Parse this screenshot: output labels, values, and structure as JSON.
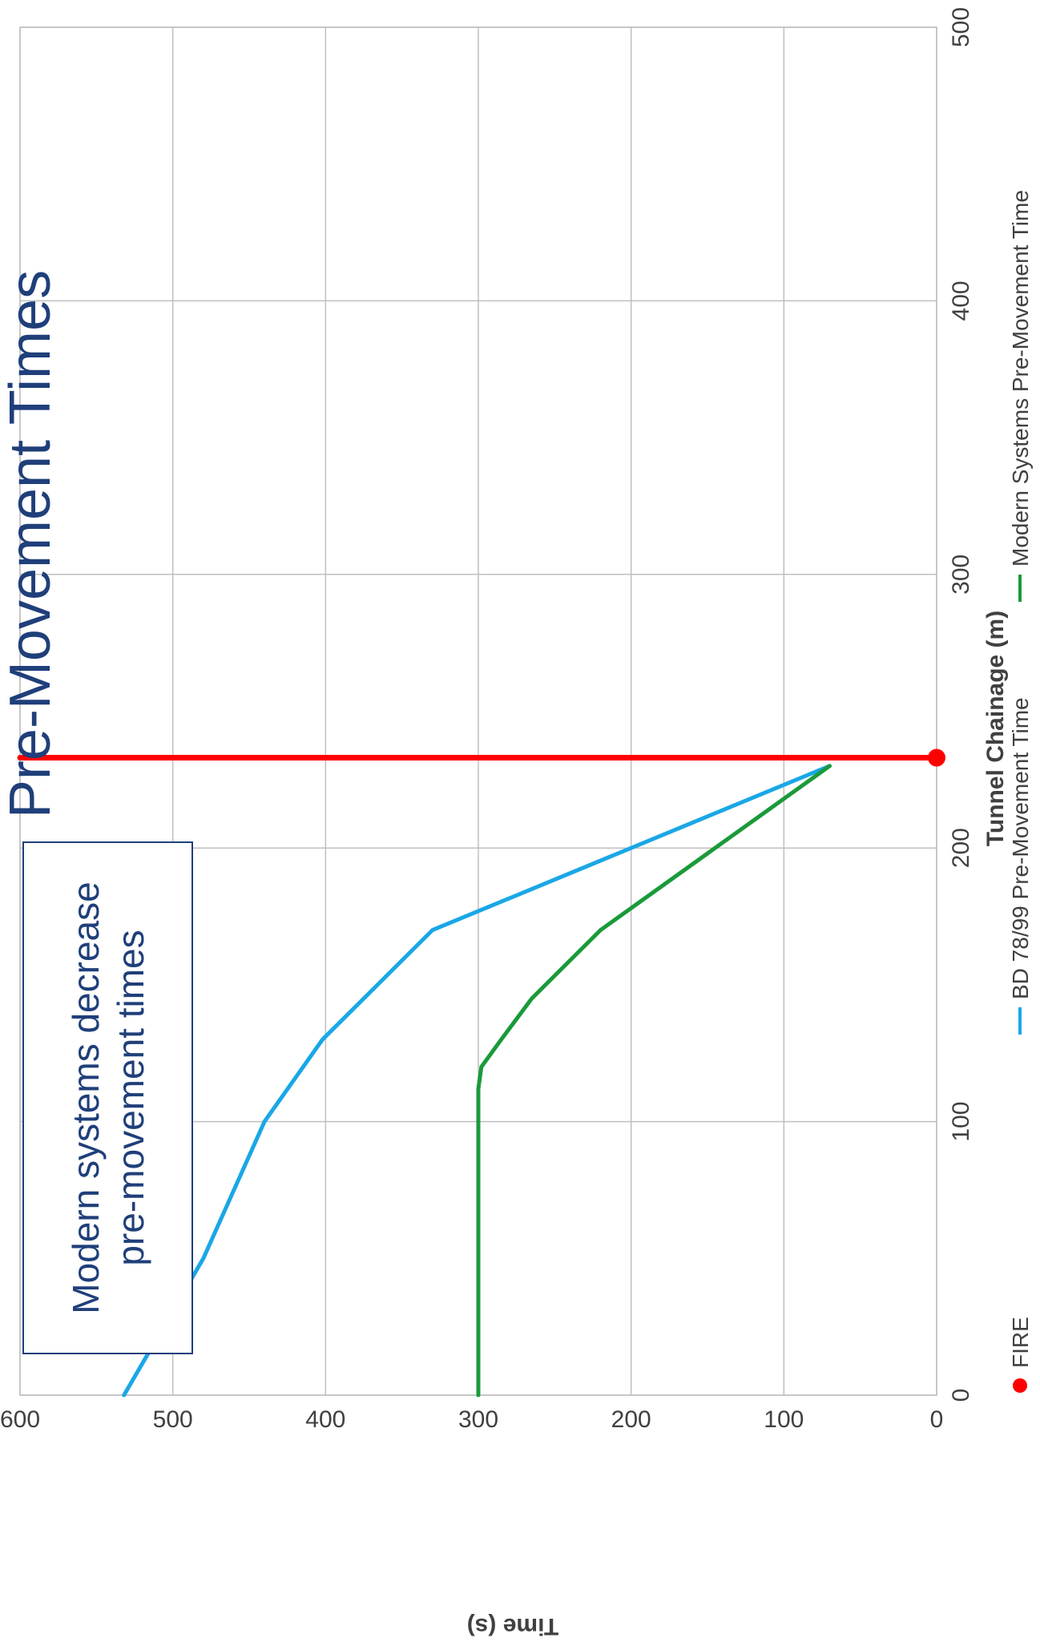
{
  "title": "Pre-Movement Times",
  "annotation": "Modern systems decrease pre-movement times",
  "colors": {
    "fire": "#ff0000",
    "bd": "#1aa7e6",
    "modern": "#1a9a3a",
    "title": "#1f3f7a",
    "grid": "#bfbfbf"
  },
  "chart_data": {
    "type": "line",
    "title": "Pre-Movement Times",
    "xlabel": "Tunnel Chainage (m)",
    "ylabel": "Time (s)",
    "xlim": [
      0,
      500
    ],
    "ylim": [
      0,
      600
    ],
    "x_ticks": [
      "0",
      "100",
      "200",
      "300",
      "400",
      "500"
    ],
    "y_ticks": [
      "0",
      "100",
      "200",
      "300",
      "400",
      "500",
      "600"
    ],
    "grid": true,
    "legend": "bottom",
    "series": [
      {
        "name": "FIRE",
        "type": "scatter-line",
        "points": [
          [
            233,
            0
          ],
          [
            233,
            600
          ]
        ],
        "marker_point": [
          233,
          0
        ]
      },
      {
        "name": "BD 78/99 Pre-Movement Time",
        "points": [
          [
            0,
            532
          ],
          [
            50,
            480
          ],
          [
            100,
            440
          ],
          [
            130,
            402
          ],
          [
            145,
            375
          ],
          [
            170,
            330
          ],
          [
            230,
            70
          ]
        ]
      },
      {
        "name": "Modern Systems Pre-Movement Time",
        "points": [
          [
            0,
            300
          ],
          [
            50,
            300
          ],
          [
            90,
            300
          ],
          [
            112,
            300
          ],
          [
            120,
            298
          ],
          [
            130,
            285
          ],
          [
            145,
            265
          ],
          [
            170,
            220
          ],
          [
            230,
            70
          ]
        ]
      }
    ]
  }
}
